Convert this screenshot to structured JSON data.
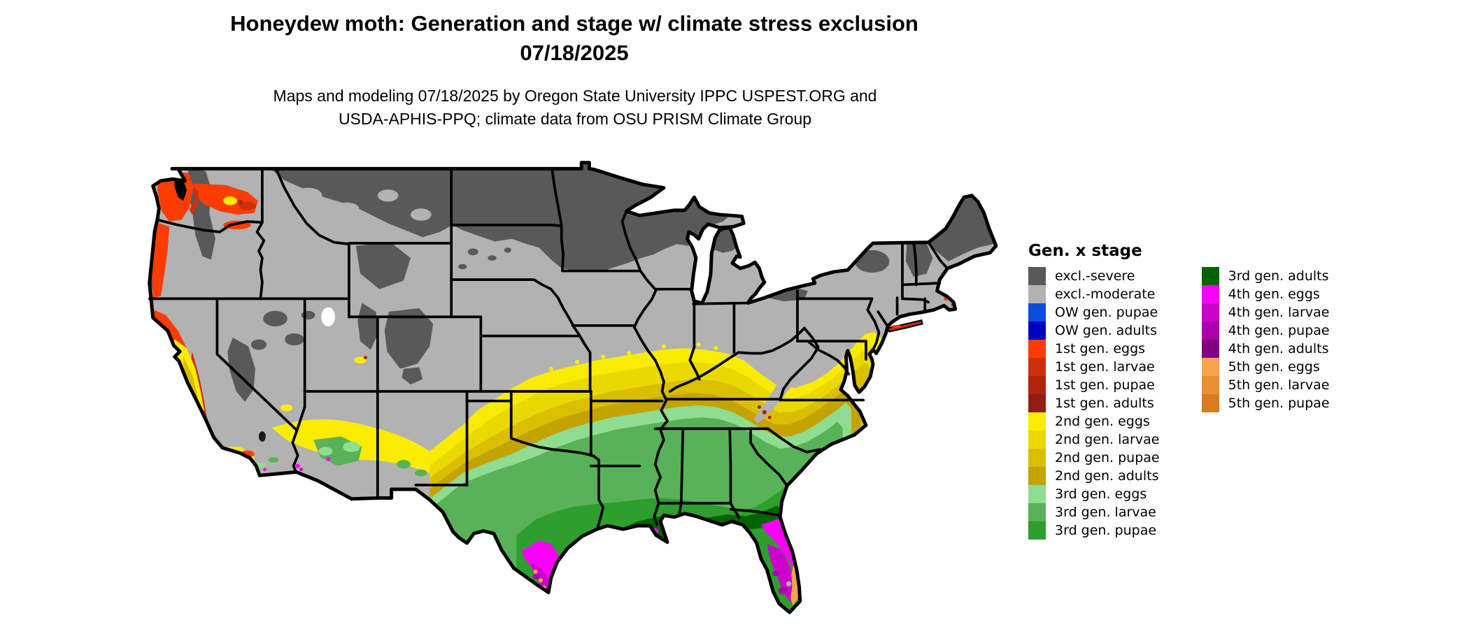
{
  "title": {
    "line1": "Honeydew moth: Generation and stage w/ climate stress exclusion",
    "line2": "07/18/2025"
  },
  "subtitle": {
    "line1": "Maps and modeling 07/18/2025 by Oregon State University IPPC USPEST.ORG and",
    "line2": "USDA-APHIS-PPQ; climate data from OSU PRISM Climate Group"
  },
  "legend": {
    "title": "Gen. x stage",
    "columns": [
      {
        "items": [
          {
            "label": "excl.-severe",
            "color_key": "excl_severe"
          },
          {
            "label": "excl.-moderate",
            "color_key": "excl_moderate"
          },
          {
            "label": "OW gen. pupae",
            "color_key": "ow_pupae"
          },
          {
            "label": "OW gen. adults",
            "color_key": "ow_adults"
          },
          {
            "label": "1st gen. eggs",
            "color_key": "g1_eggs"
          },
          {
            "label": "1st gen. larvae",
            "color_key": "g1_larvae"
          },
          {
            "label": "1st gen. pupae",
            "color_key": "g1_pupae"
          },
          {
            "label": "1st gen. adults",
            "color_key": "g1_adults"
          },
          {
            "label": "2nd gen. eggs",
            "color_key": "g2_eggs"
          },
          {
            "label": "2nd gen. larvae",
            "color_key": "g2_larvae"
          },
          {
            "label": "2nd gen. pupae",
            "color_key": "g2_pupae"
          },
          {
            "label": "2nd gen. adults",
            "color_key": "g2_adults"
          },
          {
            "label": "3rd gen. eggs",
            "color_key": "g3_eggs"
          },
          {
            "label": "3rd gen. larvae",
            "color_key": "g3_larvae"
          },
          {
            "label": "3rd gen. pupae",
            "color_key": "g3_pupae"
          }
        ]
      },
      {
        "items": [
          {
            "label": "3rd gen. adults",
            "color_key": "g3_adults"
          },
          {
            "label": "4th gen. eggs",
            "color_key": "g4_eggs"
          },
          {
            "label": "4th gen. larvae",
            "color_key": "g4_larvae"
          },
          {
            "label": "4th gen. pupae",
            "color_key": "g4_pupae"
          },
          {
            "label": "4th gen. adults",
            "color_key": "g4_adults"
          },
          {
            "label": "5th gen. eggs",
            "color_key": "g5_eggs"
          },
          {
            "label": "5th gen. larvae",
            "color_key": "g5_larvae"
          },
          {
            "label": "5th gen. pupae",
            "color_key": "g5_pupae"
          }
        ]
      }
    ]
  },
  "palette": {
    "excl_severe": "#595959",
    "excl_moderate": "#b2b2b2",
    "ow_pupae": "#0b4cdd",
    "ow_adults": "#0000c3",
    "g1_eggs": "#fb3d03",
    "g1_larvae": "#cd300d",
    "g1_pupae": "#b2230f",
    "g1_adults": "#8f1f15",
    "g2_eggs": "#f9ec00",
    "g2_larvae": "#ead900",
    "g2_pupae": "#d9bf00",
    "g2_adults": "#c4a300",
    "g3_eggs": "#90dc90",
    "g3_larvae": "#58b258",
    "g3_pupae": "#2e9e2e",
    "g3_adults": "#006400",
    "g4_eggs": "#f800f8",
    "g4_larvae": "#cb00cb",
    "g4_pupae": "#ab00ab",
    "g4_adults": "#810081",
    "g5_eggs": "#f5a44c",
    "g5_larvae": "#ea8f33",
    "g5_pupae": "#dc7a1e",
    "map_border": "#000000",
    "water": "#ffffff"
  }
}
